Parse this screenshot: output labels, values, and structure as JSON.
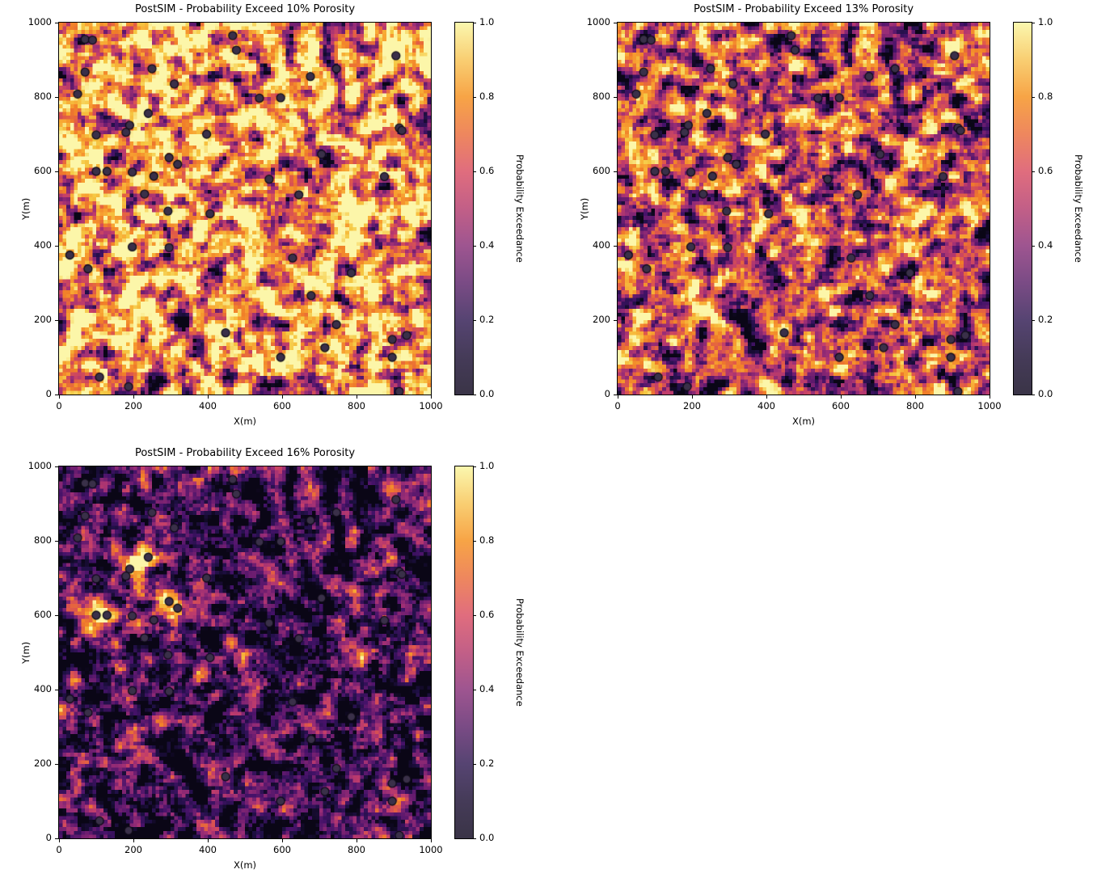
{
  "figure": {
    "background": "#ffffff",
    "text_color": "#000000"
  },
  "axes": {
    "xlabel": "X(m)",
    "ylabel": "Y(m)",
    "xlim": [
      0,
      1000
    ],
    "ylim": [
      0,
      1000
    ],
    "xtick_values": [
      0,
      200,
      400,
      600,
      800,
      1000
    ],
    "xticks": [
      "0",
      "200",
      "400",
      "600",
      "800",
      "1000"
    ],
    "ytick_values": [
      0,
      200,
      400,
      600,
      800,
      1000
    ],
    "yticks": [
      "0",
      "200",
      "400",
      "600",
      "800",
      "1000"
    ]
  },
  "colorbar": {
    "label": "Probability Exceedance",
    "tick_values": [
      0.0,
      0.2,
      0.4,
      0.6,
      0.8,
      1.0
    ],
    "ticks": [
      "0.0",
      "0.2",
      "0.4",
      "0.6",
      "0.8",
      "1.0"
    ],
    "range": [
      0,
      1
    ],
    "stops": [
      [
        0.0,
        "#3a3447"
      ],
      [
        0.1,
        "#453b58"
      ],
      [
        0.2,
        "#564472"
      ],
      [
        0.3,
        "#7a4b85"
      ],
      [
        0.4,
        "#9e5590"
      ],
      [
        0.5,
        "#c25f87"
      ],
      [
        0.6,
        "#e06d7e"
      ],
      [
        0.7,
        "#ee875e"
      ],
      [
        0.8,
        "#f7a446"
      ],
      [
        0.9,
        "#f9ce72"
      ],
      [
        1.0,
        "#faf7ae"
      ]
    ]
  },
  "heatmap_colormap_stops": [
    [
      0.0,
      "#0a0616"
    ],
    [
      0.1,
      "#201046"
    ],
    [
      0.2,
      "#451269"
    ],
    [
      0.3,
      "#6f1e70"
    ],
    [
      0.4,
      "#9b2e76"
    ],
    [
      0.5,
      "#c33e6a"
    ],
    [
      0.6,
      "#e05a49"
    ],
    [
      0.7,
      "#f07d29"
    ],
    [
      0.8,
      "#f8a331"
    ],
    [
      0.9,
      "#f5c843"
    ],
    [
      1.0,
      "#fcf6a9"
    ]
  ],
  "wells": {
    "marker_fill": "#3a3049",
    "marker_edge": "#0f0b18",
    "points": [
      [
        70,
        955
      ],
      [
        90,
        953
      ],
      [
        467,
        965
      ],
      [
        477,
        926
      ],
      [
        70,
        867
      ],
      [
        250,
        876
      ],
      [
        310,
        835
      ],
      [
        50,
        808
      ],
      [
        240,
        756
      ],
      [
        190,
        724
      ],
      [
        180,
        705
      ],
      [
        100,
        698
      ],
      [
        397,
        700
      ],
      [
        296,
        637
      ],
      [
        319,
        619
      ],
      [
        100,
        600
      ],
      [
        129,
        600
      ],
      [
        197,
        598
      ],
      [
        255,
        587
      ],
      [
        230,
        539
      ],
      [
        906,
        911
      ],
      [
        746,
        876
      ],
      [
        676,
        855
      ],
      [
        539,
        797
      ],
      [
        596,
        798
      ],
      [
        915,
        717
      ],
      [
        922,
        710
      ],
      [
        706,
        646
      ],
      [
        875,
        586
      ],
      [
        565,
        579
      ],
      [
        645,
        537
      ],
      [
        293,
        493
      ],
      [
        406,
        486
      ],
      [
        197,
        397
      ],
      [
        296,
        395
      ],
      [
        29,
        375
      ],
      [
        78,
        338
      ],
      [
        448,
        166
      ],
      [
        109,
        47
      ],
      [
        187,
        21
      ],
      [
        628,
        367
      ],
      [
        786,
        327
      ],
      [
        678,
        266
      ],
      [
        746,
        188
      ],
      [
        935,
        159
      ],
      [
        896,
        148
      ],
      [
        715,
        126
      ],
      [
        896,
        100
      ],
      [
        596,
        100
      ],
      [
        915,
        8
      ]
    ]
  },
  "chart_data": [
    {
      "type": "heatmap",
      "title": "PostSIM - Probability Exceed 10% Porosity",
      "threshold_percent": 10,
      "xlabel": "X(m)",
      "ylabel": "Y(m)",
      "xlim": [
        0,
        1000
      ],
      "ylim": [
        0,
        1000
      ],
      "grid_cells": [
        100,
        100
      ],
      "cell_size_m": 10,
      "value_range": [
        0,
        1
      ],
      "approx_mean": 0.78,
      "colorbar_label": "Probability Exceedance",
      "overlay": "well-location markers (same 50 points in every panel)",
      "hot_spots": []
    },
    {
      "type": "heatmap",
      "title": "PostSIM - Probability Exceed 13% Porosity",
      "threshold_percent": 13,
      "xlabel": "X(m)",
      "ylabel": "Y(m)",
      "xlim": [
        0,
        1000
      ],
      "ylim": [
        0,
        1000
      ],
      "grid_cells": [
        100,
        100
      ],
      "cell_size_m": 10,
      "value_range": [
        0,
        1
      ],
      "approx_mean": 0.55,
      "colorbar_label": "Probability Exceedance",
      "overlay": "well-location markers (same 50 points in every panel)",
      "hot_spots": []
    },
    {
      "type": "heatmap",
      "title": "PostSIM - Probability Exceed 16% Porosity",
      "threshold_percent": 16,
      "xlabel": "X(m)",
      "ylabel": "Y(m)",
      "xlim": [
        0,
        1000
      ],
      "ylim": [
        0,
        1000
      ],
      "grid_cells": [
        100,
        100
      ],
      "cell_size_m": 10,
      "value_range": [
        0,
        1
      ],
      "approx_mean": 0.14,
      "colorbar_label": "Probability Exceedance",
      "overlay": "well-location markers (same 50 points in every panel)",
      "hot_spots": [
        [
          190,
          724,
          0.62
        ],
        [
          240,
          756,
          0.6
        ],
        [
          225,
          748,
          0.3
        ],
        [
          296,
          637,
          0.5
        ],
        [
          319,
          619,
          0.55
        ],
        [
          100,
          600,
          0.68
        ],
        [
          129,
          600,
          0.45
        ],
        [
          197,
          598,
          0.3
        ],
        [
          896,
          100,
          0.38
        ]
      ]
    }
  ]
}
